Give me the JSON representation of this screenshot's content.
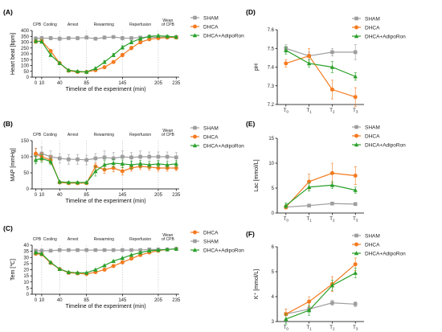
{
  "colors": {
    "sham": "#9e9e9e",
    "dhca": "#f47b20",
    "adipo": "#2aa02a"
  },
  "chart_data": [
    {
      "type": "line",
      "panel": "(A)",
      "ylabel": "Heart beat [bpm]",
      "xlabel": "Timeline of the experiment (min)",
      "x": [
        0,
        10,
        25,
        40,
        55,
        70,
        85,
        100,
        115,
        130,
        145,
        160,
        175,
        190,
        205,
        220,
        235
      ],
      "xticks": [
        0,
        10,
        40,
        85,
        145,
        205,
        235
      ],
      "xlim": [
        -6,
        240
      ],
      "ylim": [
        0,
        400
      ],
      "yticks": [
        0,
        50,
        100,
        150,
        200,
        250,
        300,
        350,
        400
      ],
      "phases": [
        "CPB",
        "Cooling",
        "Arrest",
        "Rewarming",
        "Reperfusion",
        "Wean of CPB"
      ],
      "series": [
        {
          "name": "SHAM",
          "key": "sham",
          "marker": "square",
          "values": [
            330,
            335,
            335,
            330,
            335,
            335,
            340,
            330,
            340,
            345,
            335,
            335,
            340,
            345,
            340,
            345,
            345
          ],
          "err": [
            20,
            15,
            15,
            15,
            10,
            15,
            15,
            10,
            15,
            10,
            15,
            10,
            10,
            10,
            10,
            10,
            10
          ]
        },
        {
          "name": "DHCA",
          "key": "dhca",
          "marker": "circle",
          "values": [
            305,
            310,
            225,
            120,
            55,
            45,
            45,
            60,
            85,
            130,
            190,
            250,
            300,
            325,
            335,
            340,
            340
          ],
          "err": [
            15,
            15,
            12,
            10,
            8,
            6,
            8,
            8,
            10,
            12,
            15,
            15,
            15,
            12,
            12,
            10,
            10
          ]
        },
        {
          "name": "DHCA+AdipoRon",
          "key": "adipo",
          "marker": "triangle",
          "values": [
            310,
            305,
            190,
            120,
            60,
            50,
            45,
            75,
            130,
            190,
            255,
            300,
            330,
            350,
            355,
            350,
            345
          ],
          "err": [
            15,
            15,
            12,
            10,
            8,
            6,
            8,
            10,
            12,
            15,
            15,
            15,
            12,
            12,
            12,
            10,
            10
          ]
        }
      ],
      "legend": "right"
    },
    {
      "type": "line",
      "panel": "(B)",
      "ylabel": "MAP [mmHg]",
      "xlabel": "Timeline of the experiment (min)",
      "x": [
        0,
        10,
        25,
        40,
        55,
        70,
        85,
        100,
        115,
        130,
        145,
        160,
        175,
        190,
        205,
        220,
        235
      ],
      "xticks": [
        0,
        10,
        40,
        85,
        145,
        205,
        235
      ],
      "xlim": [
        -6,
        240
      ],
      "ylim": [
        0,
        150
      ],
      "yticks": [
        0,
        50,
        100,
        150
      ],
      "phases": [
        "CPB",
        "Cooling",
        "Arrest",
        "Rewarming",
        "Reperfusion",
        "Wean of CPB"
      ],
      "series": [
        {
          "name": "SHAM",
          "key": "sham",
          "marker": "square",
          "values": [
            105,
            110,
            100,
            95,
            92,
            92,
            90,
            95,
            98,
            95,
            100,
            98,
            100,
            100,
            100,
            100,
            98
          ],
          "err": [
            22,
            20,
            18,
            15,
            15,
            15,
            15,
            15,
            20,
            18,
            18,
            15,
            18,
            15,
            15,
            15,
            15
          ]
        },
        {
          "name": "DHCA",
          "key": "dhca",
          "marker": "circle",
          "values": [
            110,
            100,
            90,
            20,
            18,
            18,
            18,
            70,
            60,
            65,
            55,
            65,
            70,
            68,
            65,
            65,
            65
          ],
          "err": [
            15,
            12,
            12,
            3,
            3,
            3,
            3,
            10,
            12,
            12,
            12,
            10,
            10,
            10,
            10,
            10,
            8
          ]
        },
        {
          "name": "DHCA+AdipoRon",
          "key": "adipo",
          "marker": "triangle",
          "values": [
            90,
            95,
            85,
            22,
            20,
            20,
            20,
            55,
            75,
            80,
            78,
            75,
            78,
            75,
            78,
            75,
            78
          ],
          "err": [
            12,
            12,
            10,
            3,
            3,
            3,
            3,
            15,
            15,
            12,
            12,
            12,
            10,
            10,
            10,
            10,
            10
          ]
        }
      ],
      "legend": "right"
    },
    {
      "type": "line",
      "panel": "(C)",
      "ylabel": "Tem [℃]",
      "xlabel": "Timeline of the experiment (min)",
      "x": [
        0,
        10,
        25,
        40,
        55,
        70,
        85,
        100,
        115,
        130,
        145,
        160,
        175,
        190,
        205,
        220,
        235
      ],
      "xticks": [
        0,
        10,
        40,
        85,
        145,
        205,
        235
      ],
      "xlim": [
        -6,
        240
      ],
      "ylim": [
        0,
        40
      ],
      "yticks": [
        0,
        5,
        10,
        15,
        20,
        25,
        30,
        35,
        40
      ],
      "phases": [
        "CPB",
        "Cooling",
        "Arrest",
        "Rewarming",
        "Reperfusion",
        "Wean of CPB"
      ],
      "series": [
        {
          "name": "DHCA",
          "key": "dhca",
          "marker": "circle",
          "values": [
            33,
            32.5,
            25.5,
            20.5,
            17.5,
            17,
            16.5,
            18,
            20,
            23,
            26,
            29,
            32,
            34,
            35.5,
            36.5,
            37
          ],
          "err": [
            0.6,
            0.6,
            0.6,
            0.6,
            0.5,
            0.5,
            0.5,
            0.5,
            0.5,
            0.6,
            0.6,
            0.6,
            0.6,
            0.5,
            0.5,
            0.5,
            0.5
          ]
        },
        {
          "name": "SHAM",
          "key": "sham",
          "marker": "square",
          "values": [
            35.5,
            35.5,
            35.5,
            36,
            36,
            36,
            36,
            36,
            36,
            36,
            36,
            36,
            36,
            36.5,
            36.5,
            36.5,
            37
          ],
          "err": [
            0.5,
            0.5,
            0.5,
            0.5,
            0.5,
            0.5,
            0.5,
            0.5,
            0.5,
            0.5,
            0.5,
            0.5,
            0.5,
            0.5,
            0.5,
            0.5,
            0.5
          ]
        },
        {
          "name": "DHCA+AdipoRon",
          "key": "adipo",
          "marker": "triangle",
          "values": [
            34,
            33,
            26,
            20.5,
            18,
            17.5,
            17.5,
            20,
            23.5,
            27,
            29.5,
            32,
            34,
            35.5,
            36,
            36.5,
            37
          ],
          "err": [
            0.6,
            0.6,
            0.6,
            0.6,
            0.5,
            0.5,
            0.5,
            0.5,
            0.5,
            0.6,
            0.6,
            0.6,
            0.6,
            0.5,
            0.5,
            0.5,
            0.5
          ]
        }
      ],
      "legend": "right"
    },
    {
      "type": "line",
      "panel": "(D)",
      "ylabel": "pH",
      "categories": [
        "T0",
        "T1",
        "T2",
        "T3"
      ],
      "ylim": [
        7.2,
        7.6
      ],
      "yticks": [
        7.2,
        7.3,
        7.4,
        7.5,
        7.6
      ],
      "series": [
        {
          "name": "SHAM",
          "key": "sham",
          "marker": "square",
          "values": [
            7.5,
            7.46,
            7.48,
            7.48
          ],
          "err": [
            0.02,
            0.02,
            0.02,
            0.04
          ]
        },
        {
          "name": "DHCA",
          "key": "dhca",
          "marker": "circle",
          "values": [
            7.42,
            7.46,
            7.28,
            7.24
          ],
          "err": [
            0.02,
            0.04,
            0.05,
            0.05
          ]
        },
        {
          "name": "DHCA+AdipoRon",
          "key": "adipo",
          "marker": "triangle",
          "values": [
            7.49,
            7.42,
            7.4,
            7.35
          ],
          "err": [
            0.02,
            0.02,
            0.03,
            0.02
          ]
        }
      ],
      "legend": "top-right"
    },
    {
      "type": "line",
      "panel": "(E)",
      "ylabel": "Lac [mmol/L]",
      "categories": [
        "T0",
        "T1",
        "T2",
        "T3"
      ],
      "ylim": [
        0,
        15
      ],
      "yticks": [
        0,
        5,
        10,
        15
      ],
      "series": [
        {
          "name": "SHAM",
          "key": "sham",
          "marker": "square",
          "values": [
            1.2,
            1.5,
            1.9,
            1.8
          ],
          "err": [
            0.3,
            0.2,
            0.3,
            0.3
          ]
        },
        {
          "name": "DHCA",
          "key": "dhca",
          "marker": "circle",
          "values": [
            1.2,
            6.3,
            8,
            7.5
          ],
          "err": [
            0.4,
            1.5,
            2,
            1.8
          ]
        },
        {
          "name": "DHCA+AdipoRon",
          "key": "adipo",
          "marker": "triangle",
          "values": [
            1.5,
            5.2,
            5.6,
            4.6
          ],
          "err": [
            0.5,
            0.8,
            0.7,
            0.6
          ]
        }
      ],
      "legend": "top-right"
    },
    {
      "type": "line",
      "panel": "(F)",
      "ylabel": "K⁺ [mmol/L]",
      "categories": [
        "T0",
        "T1",
        "T2",
        "T3"
      ],
      "ylim": [
        3,
        6
      ],
      "yticks": [
        3,
        4,
        5,
        6
      ],
      "series": [
        {
          "name": "SHAM",
          "key": "sham",
          "marker": "square",
          "values": [
            3.3,
            3.5,
            3.75,
            3.7
          ],
          "err": [
            0.2,
            0.1,
            0.1,
            0.1
          ]
        },
        {
          "name": "DHCA",
          "key": "dhca",
          "marker": "circle",
          "values": [
            3.3,
            3.8,
            4.5,
            5.3
          ],
          "err": [
            0.2,
            0.2,
            0.3,
            0.25
          ]
        },
        {
          "name": "DHCA+AdipoRon",
          "key": "adipo",
          "marker": "triangle",
          "values": [
            3.1,
            3.45,
            4.45,
            4.95
          ],
          "err": [
            0.2,
            0.2,
            0.2,
            0.2
          ]
        }
      ],
      "legend": "top-right"
    }
  ]
}
